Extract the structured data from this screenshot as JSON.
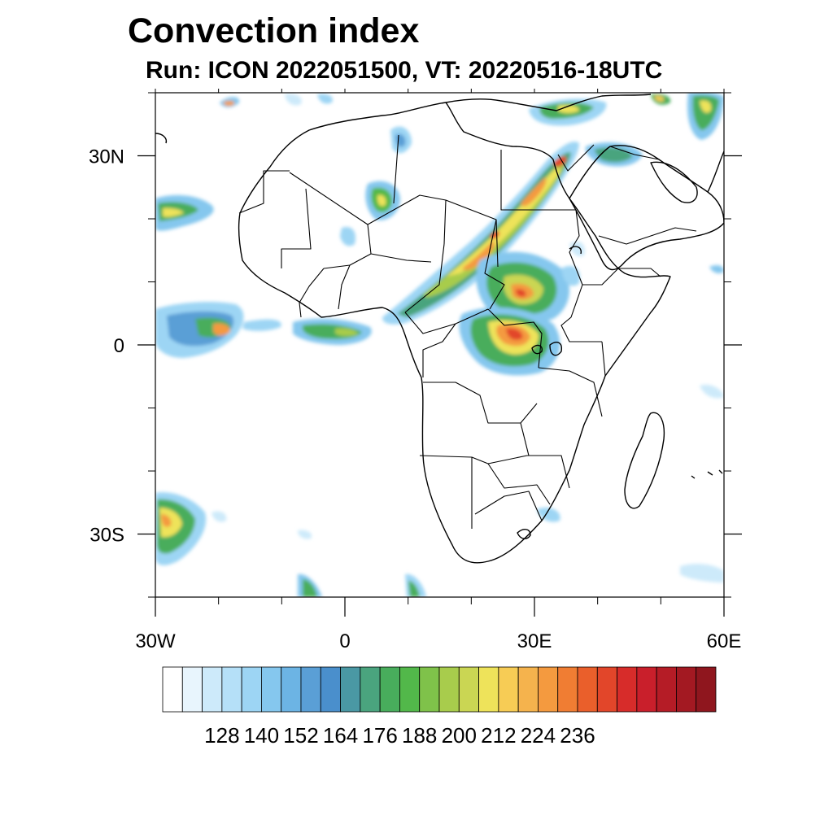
{
  "title": "Convection index",
  "subtitle": "Run: ICON 2022051500,  VT: 20220516-18UTC",
  "map": {
    "projection": "cylindrical-equidistant",
    "lon_range": [
      -30,
      60
    ],
    "lat_range": [
      -40,
      40
    ],
    "x_ticks": [
      {
        "lon": -30,
        "label": "30W"
      },
      {
        "lon": 0,
        "label": "0"
      },
      {
        "lon": 30,
        "label": "30E"
      },
      {
        "lon": 60,
        "label": "60E"
      }
    ],
    "y_ticks": [
      {
        "lat": 30,
        "label": "30N"
      },
      {
        "lat": 0,
        "label": "0"
      },
      {
        "lat": -30,
        "label": "30S"
      }
    ],
    "minor_lon_step": 10,
    "minor_lat_step": 10,
    "coastline_color": "#000000",
    "background": "#ffffff"
  },
  "colorbar": {
    "colors": [
      "#ffffff",
      "#e8f5fd",
      "#cdeafa",
      "#b5e0f8",
      "#9dd5f4",
      "#85c7ee",
      "#6cb4e4",
      "#5a9fd6",
      "#4a8fcc",
      "#4a98a4",
      "#4aa47e",
      "#48ad5c",
      "#52b84a",
      "#7fc24a",
      "#a8cc4c",
      "#cad653",
      "#eee35a",
      "#f7cc55",
      "#f5b34d",
      "#f49a3f",
      "#f07d33",
      "#ea5f2b",
      "#e2462a",
      "#d72c2a",
      "#c91f2b",
      "#b51c26",
      "#a31922",
      "#8f161e"
    ],
    "labels": [
      "128",
      "140",
      "152",
      "164",
      "176",
      "188",
      "200",
      "212",
      "224",
      "236"
    ]
  }
}
